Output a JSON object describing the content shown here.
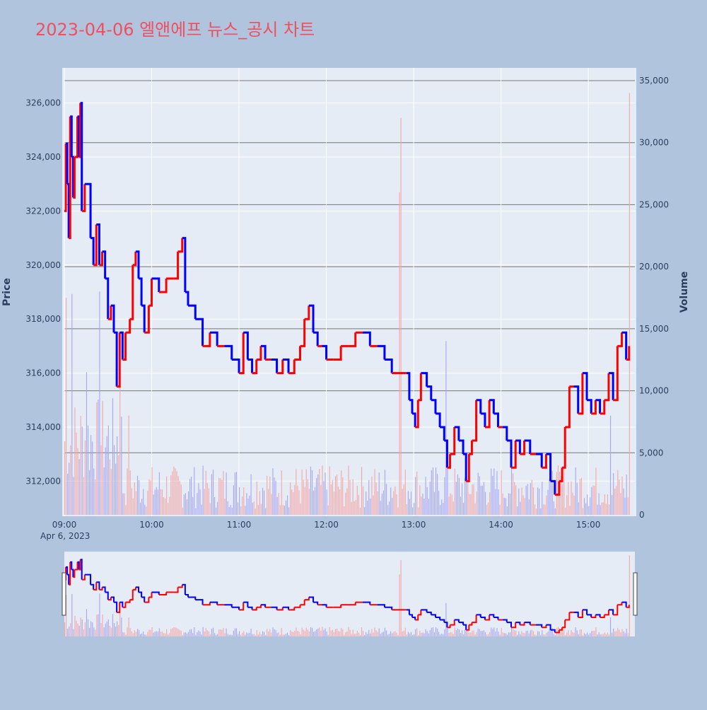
{
  "colors": {
    "background": "#b0c4de",
    "plot_bg": "#e5ecf6",
    "title": "#ef5060",
    "up": "#ff0000",
    "down": "#0000ff",
    "up_volume": "#f4a6a6",
    "down_volume": "#a6a6f4",
    "axis_text": "#2a3f5f",
    "hline": "#777777"
  },
  "chart_data": {
    "type": "line",
    "title": "2023-04-06 엘앤에프 뉴스_공시 차트",
    "ylabel": "Price",
    "y2label": "Volume",
    "x_ticks": [
      "09:00",
      "10:00",
      "11:00",
      "12:00",
      "13:00",
      "14:00",
      "15:00"
    ],
    "x_subtick": "Apr 6, 2023",
    "price_ticks": [
      "312,000",
      "314,000",
      "316,000",
      "318,000",
      "320,000",
      "322,000",
      "324,000",
      "326,000"
    ],
    "volume_ticks": [
      "0",
      "5,000",
      "10,000",
      "15,000",
      "20,000",
      "25,000",
      "30,000",
      "35,000"
    ],
    "price_range": [
      310700,
      327300
    ],
    "volume_range": [
      0,
      35000
    ],
    "grid": true,
    "rangeslider": true,
    "price_path": [
      [
        "09:00",
        322000
      ],
      [
        "09:01",
        324500
      ],
      [
        "09:02",
        323000
      ],
      [
        "09:03",
        321000
      ],
      [
        "09:04",
        325500
      ],
      [
        "09:05",
        324000
      ],
      [
        "09:06",
        322500
      ],
      [
        "09:07",
        324000
      ],
      [
        "09:09",
        325500
      ],
      [
        "09:10",
        324000
      ],
      [
        "09:11",
        326000
      ],
      [
        "09:12",
        322000
      ],
      [
        "09:14",
        323000
      ],
      [
        "09:18",
        321000
      ],
      [
        "09:20",
        320000
      ],
      [
        "09:22",
        321500
      ],
      [
        "09:24",
        320000
      ],
      [
        "09:26",
        320500
      ],
      [
        "09:28",
        319500
      ],
      [
        "09:30",
        318000
      ],
      [
        "09:32",
        318500
      ],
      [
        "09:34",
        317500
      ],
      [
        "09:36",
        315500
      ],
      [
        "09:38",
        317500
      ],
      [
        "09:40",
        316500
      ],
      [
        "09:42",
        317500
      ],
      [
        "09:45",
        318000
      ],
      [
        "09:47",
        320000
      ],
      [
        "09:49",
        320500
      ],
      [
        "09:51",
        319500
      ],
      [
        "09:53",
        318500
      ],
      [
        "09:55",
        317500
      ],
      [
        "09:58",
        318500
      ],
      [
        "10:00",
        319500
      ],
      [
        "10:05",
        319000
      ],
      [
        "10:10",
        319500
      ],
      [
        "10:15",
        319500
      ],
      [
        "10:18",
        320500
      ],
      [
        "10:21",
        321000
      ],
      [
        "10:23",
        319000
      ],
      [
        "10:25",
        318500
      ],
      [
        "10:30",
        318000
      ],
      [
        "10:35",
        317000
      ],
      [
        "10:40",
        317500
      ],
      [
        "10:45",
        317000
      ],
      [
        "10:50",
        317000
      ],
      [
        "10:55",
        316500
      ],
      [
        "11:00",
        316000
      ],
      [
        "11:03",
        317500
      ],
      [
        "11:06",
        316500
      ],
      [
        "11:09",
        316000
      ],
      [
        "11:12",
        316500
      ],
      [
        "11:15",
        317000
      ],
      [
        "11:18",
        316500
      ],
      [
        "11:22",
        316500
      ],
      [
        "11:26",
        316000
      ],
      [
        "11:30",
        316500
      ],
      [
        "11:34",
        316000
      ],
      [
        "11:38",
        316500
      ],
      [
        "11:42",
        317000
      ],
      [
        "11:45",
        318000
      ],
      [
        "11:48",
        318500
      ],
      [
        "11:51",
        317500
      ],
      [
        "11:54",
        317000
      ],
      [
        "11:57",
        317000
      ],
      [
        "12:00",
        316500
      ],
      [
        "12:05",
        316500
      ],
      [
        "12:10",
        317000
      ],
      [
        "12:15",
        317000
      ],
      [
        "12:20",
        317500
      ],
      [
        "12:25",
        317500
      ],
      [
        "12:30",
        317000
      ],
      [
        "12:35",
        317000
      ],
      [
        "12:40",
        316500
      ],
      [
        "12:45",
        316000
      ],
      [
        "12:50",
        316000
      ],
      [
        "12:55",
        316000
      ],
      [
        "12:57",
        315000
      ],
      [
        "12:59",
        314500
      ],
      [
        "13:01",
        314000
      ],
      [
        "13:03",
        315000
      ],
      [
        "13:05",
        316000
      ],
      [
        "13:09",
        315500
      ],
      [
        "13:12",
        315000
      ],
      [
        "13:15",
        314500
      ],
      [
        "13:18",
        314000
      ],
      [
        "13:21",
        313500
      ],
      [
        "13:23",
        312500
      ],
      [
        "13:25",
        313000
      ],
      [
        "13:28",
        314000
      ],
      [
        "13:31",
        313500
      ],
      [
        "13:34",
        313000
      ],
      [
        "13:36",
        312000
      ],
      [
        "13:38",
        313000
      ],
      [
        "13:40",
        313500
      ],
      [
        "13:43",
        315000
      ],
      [
        "13:46",
        314500
      ],
      [
        "13:49",
        314000
      ],
      [
        "13:52",
        315000
      ],
      [
        "13:55",
        314500
      ],
      [
        "13:58",
        314000
      ],
      [
        "14:01",
        314000
      ],
      [
        "14:04",
        313500
      ],
      [
        "14:07",
        312500
      ],
      [
        "14:10",
        313500
      ],
      [
        "14:13",
        313000
      ],
      [
        "14:16",
        313500
      ],
      [
        "14:20",
        313000
      ],
      [
        "14:24",
        313000
      ],
      [
        "14:28",
        312500
      ],
      [
        "14:31",
        313000
      ],
      [
        "14:34",
        312000
      ],
      [
        "14:37",
        311500
      ],
      [
        "14:40",
        312000
      ],
      [
        "14:42",
        312500
      ],
      [
        "14:44",
        314000
      ],
      [
        "14:47",
        315500
      ],
      [
        "14:50",
        315500
      ],
      [
        "14:53",
        314500
      ],
      [
        "14:56",
        316000
      ],
      [
        "14:59",
        315000
      ],
      [
        "15:02",
        314500
      ],
      [
        "15:05",
        315000
      ],
      [
        "15:08",
        314500
      ],
      [
        "15:11",
        315000
      ],
      [
        "15:14",
        316000
      ],
      [
        "15:17",
        315000
      ],
      [
        "15:20",
        317000
      ],
      [
        "15:23",
        317500
      ],
      [
        "15:26",
        316500
      ],
      [
        "15:28",
        317000
      ]
    ],
    "volume_spikes": [
      [
        "09:01",
        17500
      ],
      [
        "09:05",
        17800
      ],
      [
        "09:15",
        11500
      ],
      [
        "09:24",
        18000
      ],
      [
        "09:38",
        14000
      ],
      [
        "09:44",
        8000
      ],
      [
        "12:50",
        26000
      ],
      [
        "12:51",
        32000
      ],
      [
        "13:22",
        14000
      ],
      [
        "15:15",
        8000
      ],
      [
        "15:28",
        34000
      ]
    ]
  }
}
